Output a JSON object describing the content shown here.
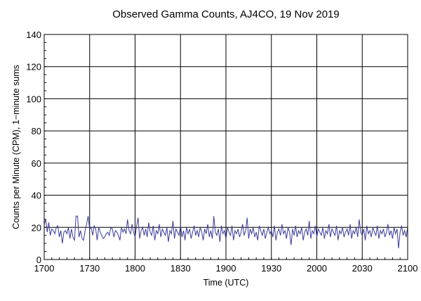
{
  "chart_data": {
    "type": "line",
    "title": "Observed Gamma Counts, AJ4CO, 19 Nov 2019",
    "xlabel": "Time (UTC)",
    "ylabel": "Counts per Minute (CPM), 1−minute sums",
    "x_ticks": [
      "1700",
      "1730",
      "1800",
      "1830",
      "1900",
      "1930",
      "2000",
      "2030",
      "2100"
    ],
    "y_ticks": [
      "0",
      "20",
      "40",
      "60",
      "80",
      "100",
      "120",
      "140"
    ],
    "xlim": [
      "17:00",
      "21:00"
    ],
    "ylim": [
      0,
      140
    ],
    "grid": true,
    "x_unit": "minutes from 17:00 UTC, 1-minute sums",
    "series": [
      {
        "color": "#3a3a9a",
        "x_start": "17:00",
        "x_step_minutes": 1,
        "values": [
          22,
          25,
          17,
          23,
          15,
          19,
          18,
          16,
          20,
          21,
          14,
          18,
          10,
          17,
          18,
          16,
          20,
          13,
          19,
          14,
          12,
          27,
          27,
          14,
          18,
          13,
          12,
          18,
          22,
          27,
          19,
          20,
          15,
          21,
          19,
          12,
          20,
          17,
          15,
          13,
          14,
          16,
          17,
          15,
          20,
          19,
          14,
          18,
          17,
          15,
          12,
          20,
          17,
          19,
          16,
          25,
          18,
          16,
          22,
          17,
          14,
          21,
          26,
          13,
          18,
          20,
          15,
          19,
          14,
          23,
          17,
          15,
          21,
          12,
          18,
          16,
          22,
          14,
          19,
          17,
          15,
          20,
          11,
          18,
          16,
          24,
          13,
          19,
          17,
          15,
          21,
          14,
          18,
          12,
          20,
          16,
          19,
          13,
          17,
          21,
          15,
          18,
          14,
          20,
          17,
          12,
          19,
          16,
          22,
          14,
          18,
          13,
          27,
          17,
          15,
          19,
          11,
          21,
          16,
          18,
          13,
          20,
          17,
          15,
          21,
          12,
          18,
          16,
          19,
          14,
          17,
          22,
          15,
          18,
          26,
          13,
          19,
          16,
          20,
          14,
          17,
          12,
          21,
          18,
          15,
          19,
          13,
          17,
          20,
          16,
          18,
          14,
          21,
          12,
          17,
          19,
          15,
          22,
          16,
          18,
          13,
          20,
          17,
          9,
          19,
          15,
          21,
          14,
          18,
          16,
          20,
          12,
          17,
          19,
          15,
          24,
          13,
          18,
          16,
          21,
          14,
          19,
          17,
          15,
          20,
          13,
          18,
          16,
          22,
          14,
          19,
          17,
          15,
          21,
          12,
          18,
          16,
          20,
          14,
          17,
          19,
          15,
          22,
          13,
          18,
          16,
          20,
          14,
          25,
          17,
          15,
          19,
          12,
          21,
          16,
          18,
          14,
          20,
          17,
          15,
          21,
          13,
          18,
          16,
          19,
          14,
          17,
          22,
          15,
          18,
          13,
          20,
          16,
          19,
          7,
          17,
          21,
          15,
          18,
          14,
          20
        ]
      }
    ]
  }
}
